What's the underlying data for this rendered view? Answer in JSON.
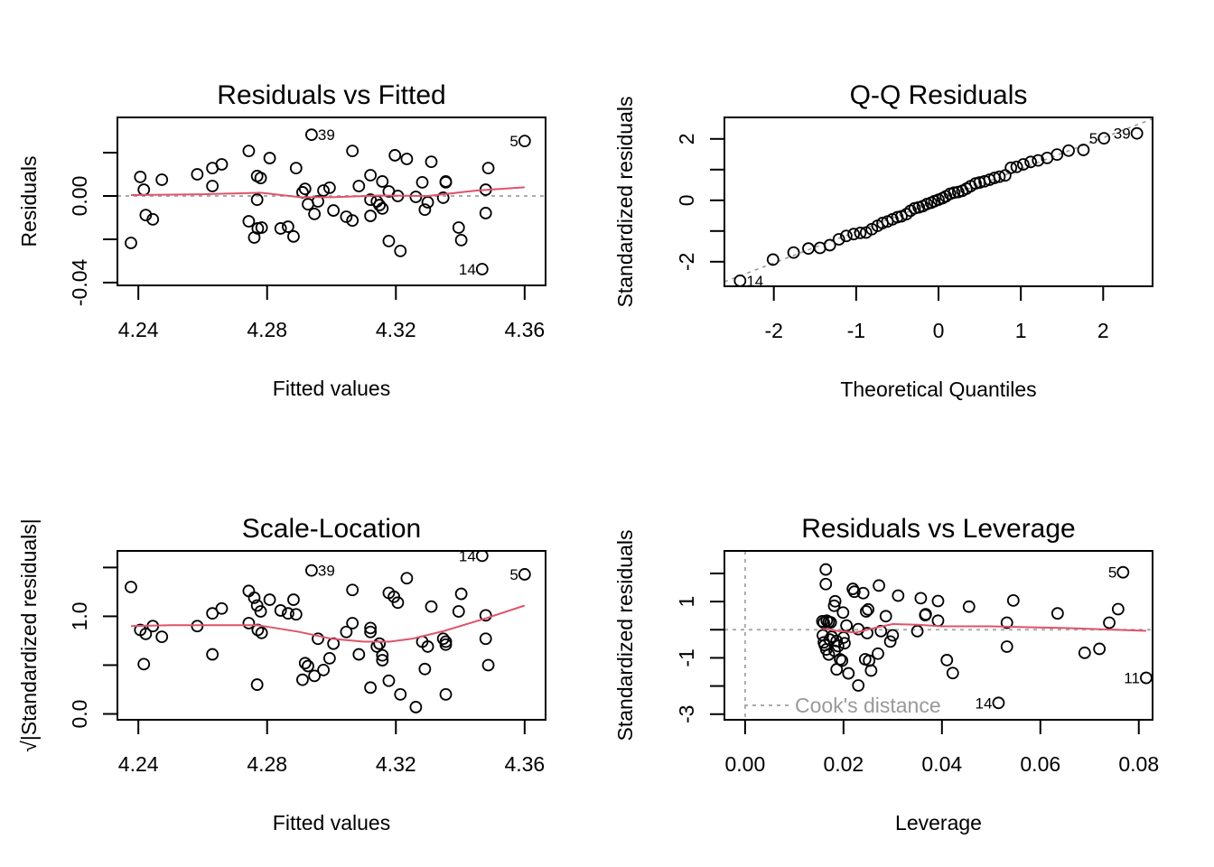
{
  "chart_data": [
    {
      "type": "scatter",
      "id": "resid_fitted",
      "title": "Residuals vs Fitted",
      "xlabel": "Fitted values",
      "ylabel": "Residuals",
      "xlim": [
        4.2335,
        4.3665
      ],
      "ylim": [
        -0.0413,
        0.0363
      ],
      "xticks": [
        4.24,
        4.28,
        4.32,
        4.36
      ],
      "xtick_labels": [
        "4.24",
        "4.28",
        "4.32",
        "4.36"
      ],
      "yticks": [
        -0.04,
        -0.02,
        0.0,
        0.02
      ],
      "ytick_labels": [
        "-0.04",
        "",
        "0.00",
        ""
      ],
      "reference_line": 0,
      "points": [
        [
          4.2377,
          -0.0217
        ],
        [
          4.2406,
          0.0088
        ],
        [
          4.2417,
          0.0029
        ],
        [
          4.2423,
          -0.0088
        ],
        [
          4.2445,
          -0.0108
        ],
        [
          4.2473,
          0.0075
        ],
        [
          4.2583,
          0.01
        ],
        [
          4.263,
          0.0129
        ],
        [
          4.2659,
          0.0146
        ],
        [
          4.263,
          0.0046
        ],
        [
          4.2743,
          0.0208
        ],
        [
          4.2808,
          0.0175
        ],
        [
          4.2769,
          0.0092
        ],
        [
          4.278,
          0.0083
        ],
        [
          4.2769,
          -0.0017
        ],
        [
          4.2743,
          -0.0117
        ],
        [
          4.2771,
          -0.015
        ],
        [
          4.2783,
          -0.0146
        ],
        [
          4.276,
          -0.0192
        ],
        [
          4.2842,
          -0.015
        ],
        [
          4.2865,
          -0.0142
        ],
        [
          4.2882,
          -0.0187
        ],
        [
          4.289,
          0.0129
        ],
        [
          4.2918,
          0.0033
        ],
        [
          4.291,
          0.0017
        ],
        [
          4.2927,
          -0.0038
        ],
        [
          4.2958,
          -0.0025
        ],
        [
          4.2947,
          -0.0083
        ],
        [
          4.2975,
          0.0025
        ],
        [
          4.2994,
          0.0038
        ],
        [
          4.3006,
          -0.0067
        ],
        [
          4.2938,
          0.0283
        ],
        [
          4.3065,
          0.0208
        ],
        [
          4.3046,
          -0.0096
        ],
        [
          4.3065,
          -0.0113
        ],
        [
          4.3085,
          0.0046
        ],
        [
          4.3121,
          0.0096
        ],
        [
          4.3121,
          -0.0017
        ],
        [
          4.3141,
          -0.0025
        ],
        [
          4.3149,
          -0.0042
        ],
        [
          4.3158,
          -0.0058
        ],
        [
          4.3158,
          0.0067
        ],
        [
          4.3178,
          0.0021
        ],
        [
          4.3206,
          0.0
        ],
        [
          4.3121,
          -0.0092
        ],
        [
          4.3197,
          0.0188
        ],
        [
          4.3234,
          0.0171
        ],
        [
          4.3178,
          -0.0208
        ],
        [
          4.3214,
          -0.0254
        ],
        [
          4.3262,
          -0.0004
        ],
        [
          4.3282,
          0.0063
        ],
        [
          4.3299,
          -0.0029
        ],
        [
          4.329,
          -0.0063
        ],
        [
          4.331,
          0.0158
        ],
        [
          4.3347,
          -0.0008
        ],
        [
          4.3355,
          0.0067
        ],
        [
          4.3355,
          0.0063
        ],
        [
          4.3395,
          -0.0146
        ],
        [
          4.3403,
          -0.0204
        ],
        [
          4.3479,
          0.0029
        ],
        [
          4.3479,
          -0.0079
        ],
        [
          4.3487,
          0.0129
        ],
        [
          4.3468,
          -0.0338
        ],
        [
          4.36,
          0.0254
        ]
      ],
      "smooth": [
        [
          4.2377,
          0.0004
        ],
        [
          4.26,
          0.0008
        ],
        [
          4.278,
          0.0015
        ],
        [
          4.29,
          -0.0005
        ],
        [
          4.3,
          -0.0006
        ],
        [
          4.315,
          0.0002
        ],
        [
          4.33,
          0.0
        ],
        [
          4.345,
          0.0025
        ],
        [
          4.36,
          0.004
        ]
      ],
      "labels": [
        {
          "text": "39",
          "point": 31,
          "side": "right"
        },
        {
          "text": "5",
          "point": 63,
          "side": "left"
        },
        {
          "text": "14",
          "point": 62,
          "side": "left"
        }
      ]
    },
    {
      "type": "scatter",
      "id": "qq",
      "title": "Q-Q Residuals",
      "xlabel": "Theoretical Quantiles",
      "ylabel": "Standardized residuals",
      "xlim": [
        -2.6,
        2.6
      ],
      "ylim": [
        -2.8,
        2.7
      ],
      "xticks": [
        -2,
        -1,
        0,
        1,
        2
      ],
      "xtick_labels": [
        "-2",
        "-1",
        "0",
        "1",
        "2"
      ],
      "yticks": [
        -2,
        -1,
        0,
        1,
        2
      ],
      "ytick_labels": [
        "-2",
        "",
        "0",
        "",
        "2"
      ],
      "reference_line": {
        "slope": 1.02,
        "intercept": 0.0
      },
      "theoretical": [
        -2.41,
        -2.01,
        -1.76,
        -1.58,
        -1.44,
        -1.32,
        -1.21,
        -1.12,
        -1.03,
        -0.95,
        -0.88,
        -0.81,
        -0.74,
        -0.68,
        -0.62,
        -0.56,
        -0.5,
        -0.45,
        -0.39,
        -0.34,
        -0.29,
        -0.24,
        -0.19,
        -0.14,
        -0.09,
        -0.05,
        0.0,
        0.05,
        0.09,
        0.14,
        0.19,
        0.24,
        0.29,
        0.34,
        0.39,
        0.45,
        0.5,
        0.56,
        0.62,
        0.68,
        0.74,
        0.81,
        0.88,
        0.95,
        1.03,
        1.12,
        1.21,
        1.32,
        1.44,
        1.58,
        1.76,
        2.01,
        2.41
      ],
      "sample": [
        -2.62,
        -1.93,
        -1.7,
        -1.57,
        -1.55,
        -1.46,
        -1.27,
        -1.16,
        -1.1,
        -1.06,
        -1.05,
        -0.94,
        -0.83,
        -0.74,
        -0.69,
        -0.62,
        -0.55,
        -0.52,
        -0.45,
        -0.34,
        -0.26,
        -0.23,
        -0.19,
        -0.12,
        -0.08,
        -0.03,
        0.02,
        0.07,
        0.13,
        0.21,
        0.25,
        0.27,
        0.31,
        0.38,
        0.46,
        0.55,
        0.58,
        0.62,
        0.67,
        0.73,
        0.77,
        0.81,
        1.06,
        1.09,
        1.17,
        1.25,
        1.3,
        1.38,
        1.49,
        1.62,
        1.64,
        2.02,
        2.18
      ],
      "labels": [
        {
          "text": "14",
          "point": 0,
          "side": "right"
        },
        {
          "text": "5",
          "point": 51,
          "side": "left"
        },
        {
          "text": "39",
          "point": 52,
          "side": "left"
        }
      ]
    },
    {
      "type": "scatter",
      "id": "scale_location",
      "title": "Scale-Location",
      "xlabel": "Fitted values",
      "ylabel": "√|Standardized residuals|",
      "xlim": [
        4.2335,
        4.3665
      ],
      "ylim": [
        -0.06,
        1.67
      ],
      "xticks": [
        4.24,
        4.28,
        4.32,
        4.36
      ],
      "xtick_labels": [
        "4.24",
        "4.28",
        "4.32",
        "4.36"
      ],
      "yticks": [
        0.0,
        0.5,
        1.0,
        1.5
      ],
      "ytick_labels": [
        "0.0",
        "",
        "1.0",
        ""
      ],
      "points": [
        [
          4.2377,
          1.3
        ],
        [
          4.2406,
          0.86
        ],
        [
          4.2417,
          0.51
        ],
        [
          4.2423,
          0.82
        ],
        [
          4.2445,
          0.9
        ],
        [
          4.2473,
          0.79
        ],
        [
          4.2583,
          0.9
        ],
        [
          4.263,
          1.03
        ],
        [
          4.2659,
          1.08
        ],
        [
          4.263,
          0.61
        ],
        [
          4.2743,
          1.26
        ],
        [
          4.2808,
          1.17
        ],
        [
          4.2769,
          1.11
        ],
        [
          4.278,
          1.05
        ],
        [
          4.2769,
          0.3
        ],
        [
          4.2743,
          0.93
        ],
        [
          4.2771,
          0.86
        ],
        [
          4.2783,
          0.83
        ],
        [
          4.276,
          1.19
        ],
        [
          4.2842,
          1.06
        ],
        [
          4.2865,
          1.03
        ],
        [
          4.2882,
          1.17
        ],
        [
          4.289,
          1.02
        ],
        [
          4.2918,
          0.52
        ],
        [
          4.291,
          0.35
        ],
        [
          4.2927,
          0.49
        ],
        [
          4.2958,
          0.77
        ],
        [
          4.2947,
          0.39
        ],
        [
          4.2975,
          0.45
        ],
        [
          4.2994,
          0.57
        ],
        [
          4.3006,
          0.72
        ],
        [
          4.2938,
          1.47
        ],
        [
          4.3065,
          1.27
        ],
        [
          4.3046,
          0.84
        ],
        [
          4.3065,
          0.93
        ],
        [
          4.3085,
          0.61
        ],
        [
          4.3121,
          0.88
        ],
        [
          4.3121,
          0.84
        ],
        [
          4.3141,
          0.69
        ],
        [
          4.3149,
          0.72
        ],
        [
          4.3158,
          0.6
        ],
        [
          4.3158,
          0.55
        ],
        [
          4.3178,
          1.24
        ],
        [
          4.3194,
          1.2
        ],
        [
          4.3121,
          0.27
        ],
        [
          4.3206,
          1.14
        ],
        [
          4.3234,
          1.39
        ],
        [
          4.3178,
          0.34
        ],
        [
          4.3214,
          0.2
        ],
        [
          4.3262,
          0.07
        ],
        [
          4.3282,
          0.74
        ],
        [
          4.3299,
          0.69
        ],
        [
          4.329,
          0.46
        ],
        [
          4.331,
          1.1
        ],
        [
          4.3347,
          0.77
        ],
        [
          4.3355,
          0.71
        ],
        [
          4.3355,
          0.74
        ],
        [
          4.3395,
          1.05
        ],
        [
          4.3403,
          1.23
        ],
        [
          4.3479,
          1.01
        ],
        [
          4.3479,
          0.77
        ],
        [
          4.3487,
          0.5
        ],
        [
          4.3355,
          0.2
        ],
        [
          4.3468,
          1.62
        ],
        [
          4.36,
          1.43
        ]
      ],
      "smooth": [
        [
          4.2377,
          0.9
        ],
        [
          4.25,
          0.91
        ],
        [
          4.265,
          0.91
        ],
        [
          4.277,
          0.91
        ],
        [
          4.29,
          0.84
        ],
        [
          4.3,
          0.77
        ],
        [
          4.31,
          0.74
        ],
        [
          4.318,
          0.74
        ],
        [
          4.325,
          0.77
        ],
        [
          4.335,
          0.85
        ],
        [
          4.348,
          0.98
        ],
        [
          4.36,
          1.11
        ]
      ],
      "labels": [
        {
          "text": "39",
          "point": 31,
          "side": "right"
        },
        {
          "text": "14",
          "point": 63,
          "side": "left"
        },
        {
          "text": "5",
          "point": 64,
          "side": "left"
        }
      ]
    },
    {
      "type": "scatter",
      "id": "resid_leverage",
      "title": "Residuals vs Leverage",
      "xlabel": "Leverage",
      "ylabel": "Standardized residuals",
      "xlim": [
        -0.0042,
        0.0828
      ],
      "ylim": [
        -3.2,
        2.8
      ],
      "xticks": [
        0.0,
        0.02,
        0.04,
        0.06,
        0.08
      ],
      "xtick_labels": [
        "0.00",
        "0.02",
        "0.04",
        "0.06",
        "0.08"
      ],
      "yticks": [
        -3,
        -2,
        -1,
        0,
        1,
        2
      ],
      "ytick_labels": [
        "-3",
        "",
        "-1",
        "",
        "1",
        ""
      ],
      "reference_lines": {
        "h": 0,
        "v": 0
      },
      "legend": {
        "text": "Cook's distance",
        "position": "bottom-left"
      },
      "points": [
        [
          0.0164,
          2.14
        ],
        [
          0.0164,
          1.62
        ],
        [
          0.0157,
          0.3
        ],
        [
          0.016,
          0.25
        ],
        [
          0.0166,
          0.32
        ],
        [
          0.017,
          0.28
        ],
        [
          0.0174,
          0.26
        ],
        [
          0.0158,
          -0.2
        ],
        [
          0.016,
          -0.45
        ],
        [
          0.0162,
          -0.55
        ],
        [
          0.0165,
          -0.7
        ],
        [
          0.017,
          -0.88
        ],
        [
          0.0172,
          -0.35
        ],
        [
          0.0176,
          -0.25
        ],
        [
          0.0181,
          0.85
        ],
        [
          0.0183,
          1.01
        ],
        [
          0.0186,
          -0.4
        ],
        [
          0.0189,
          -0.58
        ],
        [
          0.0182,
          -0.75
        ],
        [
          0.0186,
          -1.41
        ],
        [
          0.0193,
          -1.05
        ],
        [
          0.0197,
          -1.1
        ],
        [
          0.02,
          -0.28
        ],
        [
          0.0202,
          -0.48
        ],
        [
          0.0206,
          0.15
        ],
        [
          0.0199,
          0.61
        ],
        [
          0.021,
          -1.55
        ],
        [
          0.0219,
          1.45
        ],
        [
          0.0222,
          1.35
        ],
        [
          0.023,
          -1.98
        ],
        [
          0.023,
          0.02
        ],
        [
          0.024,
          1.3
        ],
        [
          0.0244,
          -1.05
        ],
        [
          0.0246,
          0.65
        ],
        [
          0.025,
          0.72
        ],
        [
          0.0248,
          -0.12
        ],
        [
          0.0252,
          -1.1
        ],
        [
          0.0256,
          -1.45
        ],
        [
          0.0272,
          1.57
        ],
        [
          0.027,
          -0.85
        ],
        [
          0.0276,
          -0.05
        ],
        [
          0.0286,
          0.48
        ],
        [
          0.0295,
          -0.42
        ],
        [
          0.03,
          -0.2
        ],
        [
          0.0311,
          1.21
        ],
        [
          0.035,
          -0.05
        ],
        [
          0.0357,
          1.12
        ],
        [
          0.0366,
          0.52
        ],
        [
          0.0367,
          0.55
        ],
        [
          0.0392,
          1.02
        ],
        [
          0.0392,
          0.32
        ],
        [
          0.041,
          -1.08
        ],
        [
          0.0422,
          -1.54
        ],
        [
          0.0455,
          0.82
        ],
        [
          0.0532,
          0.25
        ],
        [
          0.0532,
          -0.6
        ],
        [
          0.0545,
          1.04
        ],
        [
          0.0635,
          0.58
        ],
        [
          0.069,
          -0.82
        ],
        [
          0.072,
          -0.68
        ],
        [
          0.074,
          0.25
        ],
        [
          0.0758,
          0.73
        ],
        [
          0.0515,
          -2.6
        ],
        [
          0.0768,
          2.04
        ],
        [
          0.0815,
          -1.71
        ]
      ],
      "smooth": [
        [
          0.0157,
          0.03
        ],
        [
          0.019,
          -0.05
        ],
        [
          0.0225,
          -0.1
        ],
        [
          0.026,
          0.05
        ],
        [
          0.03,
          0.2
        ],
        [
          0.035,
          0.18
        ],
        [
          0.04,
          0.12
        ],
        [
          0.05,
          0.12
        ],
        [
          0.065,
          0.06
        ],
        [
          0.0815,
          -0.04
        ]
      ],
      "labels": [
        {
          "text": "14",
          "point": 62,
          "side": "left"
        },
        {
          "text": "5",
          "point": 63,
          "side": "left"
        },
        {
          "text": "11",
          "point": 64,
          "side": "left"
        }
      ]
    }
  ],
  "colors": {
    "smooth": "#DF536B",
    "reference": "#AAAAAA",
    "points": "#000000",
    "legend_text": "#999999"
  }
}
